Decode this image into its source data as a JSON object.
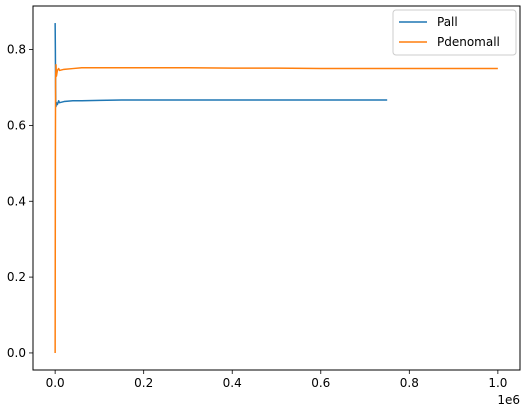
{
  "chart_data": {
    "type": "line",
    "title": "",
    "xlabel": "",
    "ylabel": "",
    "xlim": [
      -0.05,
      1.05
    ],
    "ylim": [
      -0.045,
      0.915
    ],
    "x_offset_label": "1e6",
    "xticks": [
      {
        "value": 0.0,
        "label": "0.0"
      },
      {
        "value": 0.2,
        "label": "0.2"
      },
      {
        "value": 0.4,
        "label": "0.4"
      },
      {
        "value": 0.6,
        "label": "0.6"
      },
      {
        "value": 0.8,
        "label": "0.8"
      },
      {
        "value": 1.0,
        "label": "1.0"
      }
    ],
    "yticks": [
      {
        "value": 0.0,
        "label": "0.0"
      },
      {
        "value": 0.2,
        "label": "0.2"
      },
      {
        "value": 0.4,
        "label": "0.4"
      },
      {
        "value": 0.6,
        "label": "0.6"
      },
      {
        "value": 0.8,
        "label": "0.8"
      }
    ],
    "grid": false,
    "legend": {
      "position": "top-right"
    },
    "series": [
      {
        "name": "Pall",
        "color": "#1f77b4",
        "x": [
          0,
          0.0005,
          0.001,
          0.0015,
          0.002,
          0.003,
          0.005,
          0.008,
          0.01,
          0.02,
          0.04,
          0.06,
          0.1,
          0.15,
          0.2,
          0.3,
          0.4,
          0.5,
          0.6,
          0.7,
          0.75
        ],
        "y": [
          0.87,
          0.8,
          0.7,
          0.66,
          0.65,
          0.66,
          0.655,
          0.665,
          0.66,
          0.663,
          0.665,
          0.665,
          0.666,
          0.667,
          0.667,
          0.667,
          0.667,
          0.667,
          0.667,
          0.667,
          0.667
        ]
      },
      {
        "name": "Pdenomall",
        "color": "#ff7f0e",
        "x": [
          0,
          0.0005,
          0.001,
          0.002,
          0.003,
          0.005,
          0.008,
          0.01,
          0.02,
          0.04,
          0.06,
          0.1,
          0.15,
          0.2,
          0.3,
          0.4,
          0.5,
          0.6,
          0.7,
          0.8,
          0.9,
          1.0
        ],
        "y": [
          0.0,
          0.5,
          0.72,
          0.76,
          0.73,
          0.745,
          0.75,
          0.745,
          0.748,
          0.75,
          0.752,
          0.752,
          0.752,
          0.752,
          0.752,
          0.751,
          0.751,
          0.75,
          0.75,
          0.75,
          0.75,
          0.75
        ]
      }
    ]
  }
}
